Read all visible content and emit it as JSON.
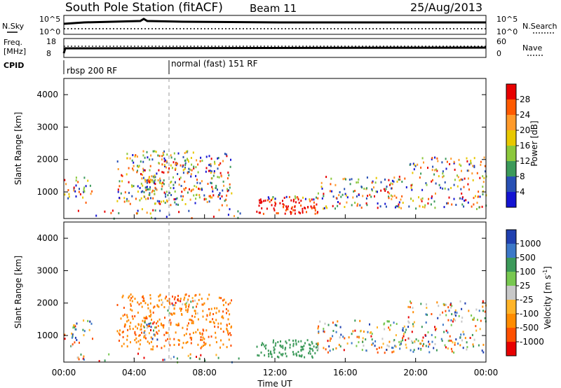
{
  "header": {
    "station": "South Pole Station (fitACF)",
    "beam": "Beam 11",
    "date": "25/Aug/2013"
  },
  "top_panels": {
    "nsky_label": "N.Sky",
    "nsearch_label": "N.Search",
    "freq_label_1": "Freq.",
    "freq_label_2": "[MHz]",
    "nave_label": "Nave",
    "cpid_label": "CPID",
    "left_ticks_1": [
      "10^5",
      "10^0"
    ],
    "right_ticks_1": [
      "10^5",
      "10^0"
    ],
    "left_ticks_2": [
      "18",
      "8"
    ],
    "right_ticks_2": [
      "60",
      "0"
    ],
    "cpid_segments": [
      {
        "label": "rbsp 200 RF",
        "start_hour": 0
      },
      {
        "label": "normal (fast) 151 RF",
        "start_hour": 6
      }
    ]
  },
  "chart_data": [
    {
      "type": "heatmap",
      "name": "power",
      "xlabel": "Time UT",
      "ylabel": "Slant Range [km]",
      "colorbar_label": "Power [dB]",
      "xlim": [
        0,
        24
      ],
      "ylim": [
        180,
        4500
      ],
      "xticks": [
        "00:00",
        "04:00",
        "08:00",
        "12:00",
        "16:00",
        "20:00",
        "00:00"
      ],
      "yticks": [
        1000,
        2000,
        3000,
        4000
      ],
      "colorbar_ticks": [
        "28",
        "24",
        "20",
        "16",
        "12",
        "8",
        "4"
      ],
      "colorbar_colors": [
        "#e80000",
        "#ff5a00",
        "#ff9a2a",
        "#e8c800",
        "#8cc83c",
        "#3c9a5a",
        "#2850b4",
        "#1414d2"
      ]
    },
    {
      "type": "heatmap",
      "name": "velocity",
      "xlabel": "Time UT",
      "ylabel": "Slant Range [km]",
      "colorbar_label": "Velocity [m s^-1]",
      "xlim": [
        0,
        24
      ],
      "ylim": [
        180,
        4500
      ],
      "xticks": [
        "00:00",
        "04:00",
        "08:00",
        "12:00",
        "16:00",
        "20:00",
        "00:00"
      ],
      "yticks": [
        1000,
        2000,
        3000,
        4000
      ],
      "colorbar_ticks": [
        "1000",
        "500",
        "100",
        "25",
        "-25",
        "-100",
        "-500",
        "-1000"
      ],
      "colorbar_colors": [
        "#2040b0",
        "#3c78c8",
        "#3c9a5a",
        "#78c850",
        "#c8c8c8",
        "#ffb428",
        "#ff8c00",
        "#ff5000",
        "#e80000"
      ]
    }
  ]
}
